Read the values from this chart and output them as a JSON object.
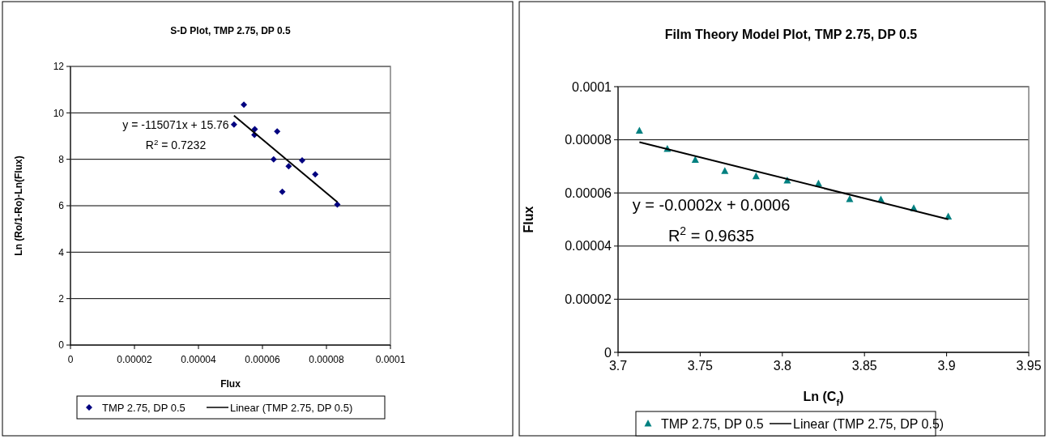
{
  "chart_data": [
    {
      "type": "scatter",
      "title": "S-D Plot, TMP 2.75, DP 0.5",
      "xlabel": "Flux",
      "ylabel": "Ln (Ro/1-Ro)-Ln(Flux)",
      "x": [
        5.11e-05,
        5.42e-05,
        5.75e-05,
        5.76e-05,
        6.35e-05,
        6.46e-05,
        6.62e-05,
        6.82e-05,
        7.24e-05,
        7.65e-05,
        8.34e-05
      ],
      "series": [
        {
          "name": "TMP 2.75, DP 0.5",
          "color": "#000080",
          "marker": "diamond",
          "values": [
            9.5,
            10.35,
            9.05,
            9.3,
            8.0,
            9.2,
            6.6,
            7.7,
            7.95,
            7.35,
            6.05
          ]
        },
        {
          "name": "Linear (TMP 2.75, DP 0.5)",
          "type": "line",
          "color": "#000000",
          "x": [
            5.11e-05,
            8.34e-05
          ],
          "values": [
            9.88,
            6.16
          ]
        }
      ],
      "xlim": [
        0,
        0.0001
      ],
      "xticks": [
        0,
        {
          "value": 2e-05,
          "label": "0.00002"
        },
        {
          "value": 4e-05,
          "label": "0.00004"
        },
        {
          "value": 6e-05,
          "label": "0.00006"
        },
        {
          "value": 8e-05,
          "label": "0.00008"
        },
        0.0001
      ],
      "ylim": [
        0,
        12
      ],
      "yticks": [
        0,
        2,
        4,
        6,
        8,
        10,
        12
      ],
      "grid": "y",
      "legend": "bottom",
      "annotations": [
        "y = -115071x + 15.76",
        "R$^{2}$ = 0.7232"
      ]
    },
    {
      "type": "scatter",
      "title": "Film Theory Model Plot, TMP 2.75, DP 0.5",
      "xlabel": "Ln (C$_{f}$)",
      "ylabel": "Flux",
      "x": [
        3.713,
        3.73,
        3.747,
        3.765,
        3.784,
        3.803,
        3.822,
        3.841,
        3.86,
        3.88,
        3.901
      ],
      "series": [
        {
          "name": "TMP 2.75, DP 0.5",
          "color": "#008080",
          "marker": "triangle",
          "values": [
            8.34e-05,
            7.65e-05,
            7.24e-05,
            6.82e-05,
            6.62e-05,
            6.46e-05,
            6.35e-05,
            5.76e-05,
            5.75e-05,
            5.42e-05,
            5.11e-05
          ]
        },
        {
          "name": "Linear (TMP 2.75, DP 0.5)",
          "type": "line",
          "color": "#000000",
          "x": [
            3.713,
            3.901
          ],
          "values": [
            7.91e-05,
            5.01e-05
          ]
        }
      ],
      "xlim": [
        3.7,
        3.95
      ],
      "xticks": [
        3.7,
        3.75,
        3.8,
        3.85,
        3.9,
        3.95
      ],
      "ylim": [
        0,
        0.0001
      ],
      "yticks": [
        0,
        {
          "value": 2e-05,
          "label": "0.00002"
        },
        {
          "value": 4e-05,
          "label": "0.00004"
        },
        {
          "value": 6e-05,
          "label": "0.00006"
        },
        {
          "value": 8e-05,
          "label": "0.00008"
        },
        0.0001
      ],
      "grid": "y",
      "legend": "bottom",
      "annotations": [
        "y = -0.0002x + 0.0006",
        "R$^{2}$ = 0.9635"
      ]
    }
  ]
}
